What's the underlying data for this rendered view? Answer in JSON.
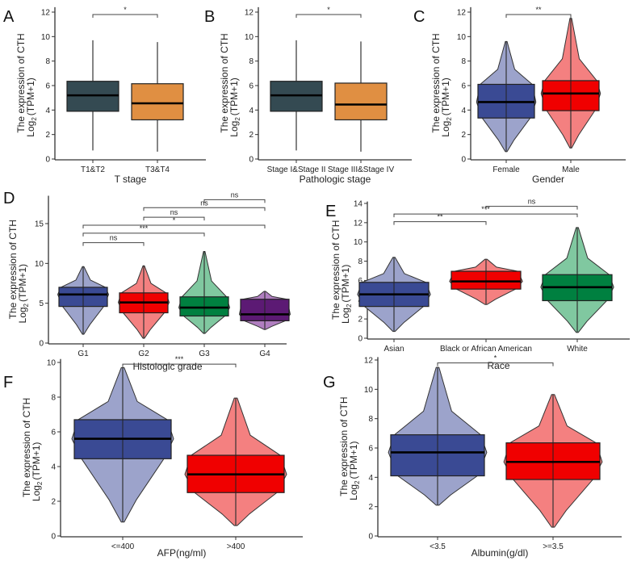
{
  "chart_data": [
    {
      "id": "A",
      "type": "box",
      "panel_label": "A",
      "xlabel": "T stage",
      "ylabel": [
        "The expression of CTH",
        "Log",
        "2",
        "(TPM+1)"
      ],
      "ylim": [
        0,
        12.4
      ],
      "yticks": [
        0,
        2,
        4,
        6,
        8,
        10,
        12
      ],
      "groups": [
        {
          "name": "T1&T2",
          "min": 0.7,
          "q1": 3.9,
          "median": 5.2,
          "q3": 6.35,
          "max": 9.7,
          "color": "#344a52"
        },
        {
          "name": "T3&T4",
          "min": 0.6,
          "q1": 3.2,
          "median": 4.55,
          "q3": 6.15,
          "max": 9.55,
          "color": "#e08f42"
        }
      ],
      "comparisons": [
        {
          "from": 0,
          "to": 1,
          "label": "*",
          "y": 11.8
        }
      ]
    },
    {
      "id": "B",
      "type": "box",
      "panel_label": "B",
      "xlabel": "Pathologic stage",
      "ylabel": [
        "The expression of CTH",
        "Log",
        "2",
        "(TPM+1)"
      ],
      "ylim": [
        0,
        12.4
      ],
      "yticks": [
        0,
        2,
        4,
        6,
        8,
        10,
        12
      ],
      "groups": [
        {
          "name": "Stage I&Stage II",
          "min": 0.7,
          "q1": 3.9,
          "median": 5.2,
          "q3": 6.35,
          "max": 9.7,
          "color": "#344a52"
        },
        {
          "name": "Stage III&Stage IV",
          "min": 0.6,
          "q1": 3.2,
          "median": 4.45,
          "q3": 6.2,
          "max": 9.6,
          "color": "#e08f42"
        }
      ],
      "comparisons": [
        {
          "from": 0,
          "to": 1,
          "label": "*",
          "y": 11.8
        }
      ]
    },
    {
      "id": "C",
      "type": "violin",
      "panel_label": "C",
      "xlabel": "Gender",
      "ylabel": [
        "The expression of CTH",
        "Log",
        "2",
        "(TPM+1)"
      ],
      "ylim": [
        0,
        12.4
      ],
      "yticks": [
        0,
        2,
        4,
        6,
        8,
        10,
        12
      ],
      "groups": [
        {
          "name": "Female",
          "min": 0.6,
          "q1": 3.35,
          "median": 4.65,
          "q3": 6.1,
          "max": 9.6,
          "color": "#3a4a94",
          "violin_color": "#9ca3cb"
        },
        {
          "name": "Male",
          "min": 0.9,
          "q1": 3.95,
          "median": 5.35,
          "q3": 6.4,
          "max": 11.5,
          "color": "#f00000",
          "violin_color": "#f48080"
        }
      ],
      "comparisons": [
        {
          "from": 0,
          "to": 1,
          "label": "**",
          "y": 11.8
        }
      ]
    },
    {
      "id": "D",
      "type": "violin",
      "panel_label": "D",
      "xlabel": "Histologic grade",
      "ylabel": [
        "The expression of CTH",
        "Log",
        "2",
        "(TPM+1)"
      ],
      "ylim": [
        0,
        18.5
      ],
      "yticks": [
        0,
        5,
        10,
        15
      ],
      "groups": [
        {
          "name": "G1",
          "min": 1.1,
          "q1": 4.6,
          "median": 6.1,
          "q3": 7.0,
          "max": 9.6,
          "color": "#3a4a94",
          "violin_color": "#9ca3cb"
        },
        {
          "name": "G2",
          "min": 0.6,
          "q1": 3.8,
          "median": 5.1,
          "q3": 6.3,
          "max": 9.7,
          "color": "#f00000",
          "violin_color": "#f48080"
        },
        {
          "name": "G3",
          "min": 1.2,
          "q1": 3.4,
          "median": 4.45,
          "q3": 5.8,
          "max": 11.5,
          "color": "#008040",
          "violin_color": "#80c8a0"
        },
        {
          "name": "G4",
          "min": 1.7,
          "q1": 2.8,
          "median": 3.6,
          "q3": 5.5,
          "max": 6.5,
          "color": "#5c1a74",
          "violin_color": "#b07ec0"
        }
      ],
      "comparisons": [
        {
          "from": 0,
          "to": 1,
          "label": "ns",
          "y": 12.6
        },
        {
          "from": 0,
          "to": 2,
          "label": "***",
          "y": 13.8
        },
        {
          "from": 0,
          "to": 3,
          "label": "*",
          "y": 14.8
        },
        {
          "from": 1,
          "to": 2,
          "label": "ns",
          "y": 15.8
        },
        {
          "from": 1,
          "to": 3,
          "label": "ns",
          "y": 17.0
        },
        {
          "from": 2,
          "to": 3,
          "label": "ns",
          "y": 18.0
        }
      ]
    },
    {
      "id": "E",
      "type": "violin",
      "panel_label": "E",
      "xlabel": "Race",
      "ylabel": [
        "The expression of CTH",
        "Log",
        "2",
        "(TPM+1)"
      ],
      "ylim": [
        0,
        14.2
      ],
      "yticks": [
        0,
        2,
        4,
        6,
        8,
        10,
        12,
        14
      ],
      "groups": [
        {
          "name": "Asian",
          "min": 0.7,
          "q1": 3.3,
          "median": 4.55,
          "q3": 5.8,
          "max": 8.4,
          "color": "#3a4a94",
          "violin_color": "#9ca3cb"
        },
        {
          "name": "Black or African American",
          "min": 3.5,
          "q1": 5.1,
          "median": 5.9,
          "q3": 6.95,
          "max": 8.2,
          "color": "#f00000",
          "violin_color": "#f48080"
        },
        {
          "name": "White",
          "min": 0.6,
          "q1": 3.9,
          "median": 5.3,
          "q3": 6.6,
          "max": 11.5,
          "color": "#008040",
          "violin_color": "#80c8a0"
        }
      ],
      "comparisons": [
        {
          "from": 0,
          "to": 1,
          "label": "**",
          "y": 12.1
        },
        {
          "from": 0,
          "to": 2,
          "label": "***",
          "y": 12.9
        },
        {
          "from": 1,
          "to": 2,
          "label": "ns",
          "y": 13.7
        }
      ]
    },
    {
      "id": "F",
      "type": "violin",
      "panel_label": "F",
      "xlabel": "AFP(ng/ml)",
      "ylabel": [
        "The expression of CTH",
        "Log",
        "2",
        "(TPM+1)"
      ],
      "ylim": [
        0,
        10.2
      ],
      "yticks": [
        0,
        2,
        4,
        6,
        8,
        10
      ],
      "groups": [
        {
          "name": "<=400",
          "min": 0.8,
          "q1": 4.45,
          "median": 5.6,
          "q3": 6.7,
          "max": 9.7,
          "color": "#3a4a94",
          "violin_color": "#9ca3cb"
        },
        {
          "name": ">400",
          "min": 0.6,
          "q1": 2.5,
          "median": 3.55,
          "q3": 4.65,
          "max": 7.95,
          "color": "#f00000",
          "violin_color": "#f48080"
        }
      ],
      "comparisons": [
        {
          "from": 0,
          "to": 1,
          "label": "***",
          "y": 9.9
        }
      ]
    },
    {
      "id": "G",
      "type": "violin",
      "panel_label": "G",
      "xlabel": "Albumin(g/dl)",
      "ylabel": [
        "The expression of CTH",
        "Log",
        "2",
        "(TPM+1)"
      ],
      "ylim": [
        0,
        12.2
      ],
      "yticks": [
        0,
        2,
        4,
        6,
        8,
        10,
        12
      ],
      "groups": [
        {
          "name": "<3.5",
          "min": 2.1,
          "q1": 4.1,
          "median": 5.7,
          "q3": 6.9,
          "max": 11.5,
          "color": "#3a4a94",
          "violin_color": "#9ca3cb"
        },
        {
          "name": ">=3.5",
          "min": 0.6,
          "q1": 3.85,
          "median": 5.05,
          "q3": 6.35,
          "max": 9.65,
          "color": "#f00000",
          "violin_color": "#f48080"
        }
      ],
      "comparisons": [
        {
          "from": 0,
          "to": 1,
          "label": "*",
          "y": 11.8
        }
      ]
    }
  ]
}
